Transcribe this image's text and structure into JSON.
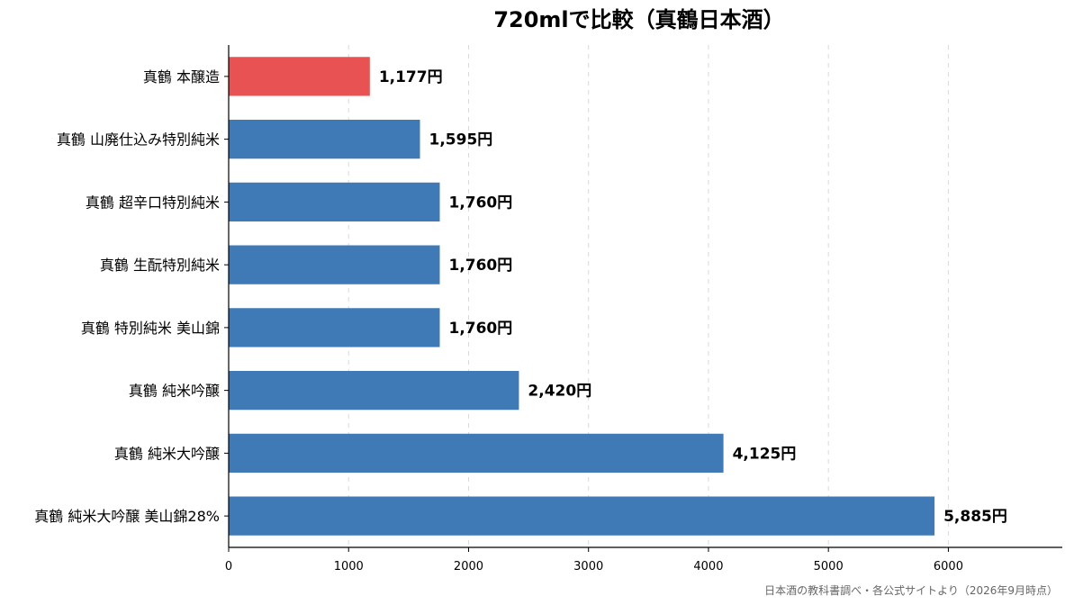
{
  "chart_data": {
    "type": "bar",
    "orientation": "horizontal",
    "title": "720mlで比較（真鶴日本酒）",
    "categories": [
      "真鶴 本醸造",
      "真鶴 山廃仕込み特別純米",
      "真鶴 超辛口特別純米",
      "真鶴 生酛特別純米",
      "真鶴 特別純米 美山錦",
      "真鶴 純米吟醸",
      "真鶴 純米大吟醸",
      "真鶴 純米大吟醸 美山錦28%"
    ],
    "values": [
      1177,
      1595,
      1760,
      1760,
      1760,
      2420,
      4125,
      5885
    ],
    "value_labels": [
      "1,177円",
      "1,595円",
      "1,760円",
      "1,760円",
      "1,760円",
      "2,420円",
      "4,125円",
      "5,885円"
    ],
    "highlight_index": 0,
    "colors": {
      "highlight": "#e85252",
      "default": "#3f7ab7"
    },
    "xticks": [
      "0",
      "1000",
      "2000",
      "3000",
      "4000",
      "5000",
      "6000"
    ],
    "xlim": [
      0,
      6950
    ],
    "xlabel": "",
    "ylabel": "",
    "grid": "x-dashed",
    "legend": "none"
  },
  "source_note": "日本酒の教科書調べ・各公式サイトより（2026年9月時点）"
}
